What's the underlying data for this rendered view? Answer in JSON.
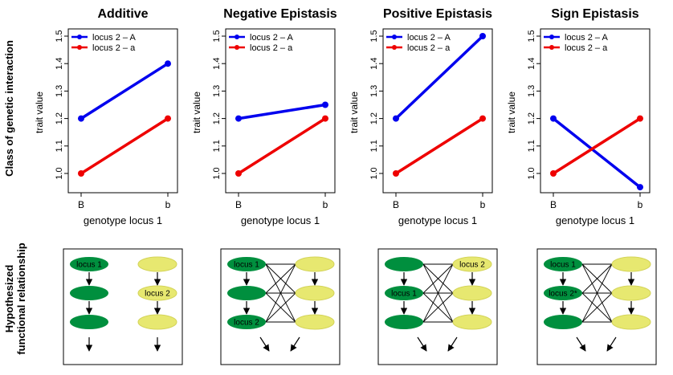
{
  "row_labels": {
    "top": "Class of genetic interaction",
    "bottom_line1": "Hypothesized",
    "bottom_line2": "functional relationship"
  },
  "colors": {
    "series_A": "#0000ee",
    "series_a": "#ee0000",
    "node_green": "#008f3e",
    "node_yellow": "#e7e870",
    "node_yellow_stroke": "#d4d45a"
  },
  "chart_data": [
    {
      "type": "line",
      "title": "Additive",
      "xlabel": "genotype locus 1",
      "ylabel": "trait value",
      "categories": [
        "B",
        "b"
      ],
      "ylim": [
        0.95,
        1.52
      ],
      "yticks": [
        "1.0",
        "1.1",
        "1.2",
        "1.3",
        "1.4",
        "1.5"
      ],
      "legend_position": "top-left",
      "series": [
        {
          "name": "locus 2 – A",
          "color": "#0000ee",
          "values": [
            1.2,
            1.4
          ]
        },
        {
          "name": "locus 2 – a",
          "color": "#ee0000",
          "values": [
            1.0,
            1.2
          ]
        }
      ]
    },
    {
      "type": "line",
      "title": "Negative Epistasis",
      "xlabel": "genotype locus 1",
      "ylabel": "trait value",
      "categories": [
        "B",
        "b"
      ],
      "ylim": [
        0.95,
        1.52
      ],
      "yticks": [
        "1.0",
        "1.1",
        "1.2",
        "1.3",
        "1.4",
        "1.5"
      ],
      "legend_position": "top-left",
      "series": [
        {
          "name": "locus 2 – A",
          "color": "#0000ee",
          "values": [
            1.2,
            1.25
          ]
        },
        {
          "name": "locus 2 – a",
          "color": "#ee0000",
          "values": [
            1.0,
            1.2
          ]
        }
      ]
    },
    {
      "type": "line",
      "title": "Positive Epistasis",
      "xlabel": "genotype locus 1",
      "ylabel": "trait value",
      "categories": [
        "B",
        "b"
      ],
      "ylim": [
        0.95,
        1.52
      ],
      "yticks": [
        "1.0",
        "1.1",
        "1.2",
        "1.3",
        "1.4",
        "1.5"
      ],
      "legend_position": "top-left",
      "series": [
        {
          "name": "locus 2 – A",
          "color": "#0000ee",
          "values": [
            1.2,
            1.5
          ]
        },
        {
          "name": "locus 2 – a",
          "color": "#ee0000",
          "values": [
            1.0,
            1.2
          ]
        }
      ]
    },
    {
      "type": "line",
      "title": "Sign Epistasis",
      "xlabel": "genotype locus 1",
      "ylabel": "trait value",
      "categories": [
        "B",
        "b"
      ],
      "ylim": [
        0.95,
        1.52
      ],
      "yticks": [
        "1.0",
        "1.1",
        "1.2",
        "1.3",
        "1.4",
        "1.5"
      ],
      "legend_position": "top-left",
      "series": [
        {
          "name": "locus 2 – A",
          "color": "#0000ee",
          "values": [
            1.2,
            0.95
          ]
        },
        {
          "name": "locus 2 – a",
          "color": "#ee0000",
          "values": [
            1.0,
            1.2
          ]
        }
      ]
    }
  ],
  "diagrams": [
    {
      "green_labels": [
        "locus 1",
        "",
        ""
      ],
      "yellow_labels": [
        "",
        "locus 2",
        ""
      ],
      "cross_links": false
    },
    {
      "green_labels": [
        "locus 1",
        "",
        "locus 2"
      ],
      "yellow_labels": [
        "",
        "",
        ""
      ],
      "cross_links": true
    },
    {
      "green_labels": [
        "",
        "locus 1",
        ""
      ],
      "yellow_labels": [
        "locus 2",
        "",
        ""
      ],
      "cross_links": true
    },
    {
      "green_labels": [
        "locus 1",
        "locus 2*",
        ""
      ],
      "yellow_labels": [
        "",
        "",
        ""
      ],
      "cross_links": true
    }
  ]
}
